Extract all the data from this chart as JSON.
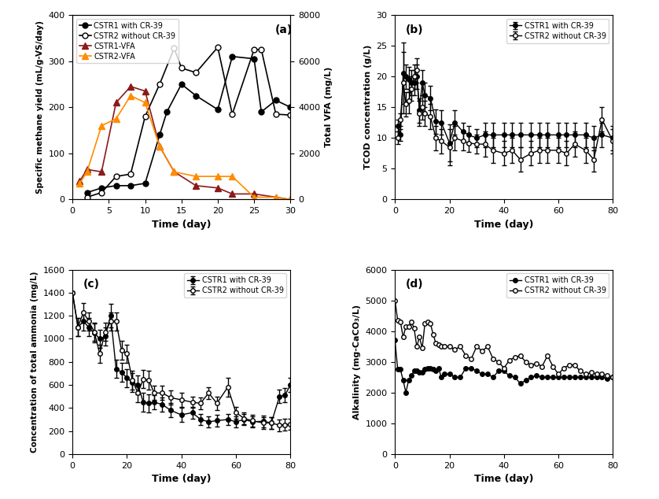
{
  "panel_a": {
    "cstr1_methane_x": [
      2,
      4,
      6,
      8,
      10,
      12,
      13,
      15,
      17,
      20,
      22,
      25,
      26,
      28,
      30
    ],
    "cstr1_methane_y": [
      15,
      25,
      30,
      30,
      35,
      140,
      190,
      250,
      225,
      195,
      310,
      305,
      190,
      215,
      200
    ],
    "cstr2_methane_x": [
      2,
      4,
      6,
      8,
      10,
      12,
      14,
      15,
      17,
      20,
      22,
      25,
      26,
      28,
      30
    ],
    "cstr2_methane_y": [
      5,
      15,
      50,
      55,
      180,
      250,
      328,
      285,
      275,
      330,
      185,
      325,
      325,
      185,
      183
    ],
    "cstr1_vfa_x": [
      1,
      2,
      4,
      6,
      8,
      10,
      12,
      14,
      17,
      20,
      22,
      25,
      28,
      30
    ],
    "cstr1_vfa_y": [
      40,
      65,
      60,
      210,
      245,
      235,
      115,
      60,
      30,
      25,
      12,
      12,
      5,
      0
    ],
    "cstr2_vfa_x": [
      1,
      2,
      4,
      6,
      8,
      10,
      12,
      14,
      17,
      20,
      22,
      25,
      28,
      30
    ],
    "cstr2_vfa_y": [
      35,
      60,
      160,
      175,
      225,
      210,
      115,
      60,
      50,
      50,
      50,
      5,
      5,
      0
    ],
    "ylabel_left": "Specific methane yield (mL/g-VS/day)",
    "ylabel_right": "Total VFA (mg/L)",
    "xlabel": "Time (day)",
    "ylim_left": [
      0,
      400
    ],
    "ylim_right": [
      0,
      8000
    ],
    "xlim": [
      0,
      30
    ],
    "label": "(a)",
    "vfa_scale": 20
  },
  "panel_b": {
    "cstr1_x": [
      1,
      2,
      3,
      4,
      5,
      6,
      7,
      8,
      9,
      10,
      11,
      13,
      15,
      17,
      20,
      22,
      25,
      27,
      30,
      33,
      36,
      40,
      43,
      46,
      50,
      53,
      56,
      60,
      63,
      66,
      70,
      73,
      76,
      80
    ],
    "cstr1_y": [
      12,
      10.5,
      20.5,
      20,
      19.5,
      19,
      19,
      20,
      14.5,
      19,
      17,
      16.5,
      12.7,
      12.5,
      9.2,
      12.5,
      11,
      10.5,
      10,
      10.5,
      10.5,
      10.5,
      10.5,
      10.5,
      10.5,
      10.5,
      10.5,
      10.5,
      10.5,
      10.5,
      10.5,
      10,
      10.5,
      10
    ],
    "cstr1_err": [
      1.0,
      1.0,
      5.0,
      2.0,
      2.0,
      2.0,
      2.0,
      2.0,
      2.0,
      2.0,
      2.0,
      2.0,
      2.0,
      2.0,
      3.0,
      2.0,
      1.5,
      1.5,
      1.5,
      2.0,
      2.0,
      2.0,
      2.0,
      2.0,
      2.0,
      2.0,
      2.0,
      2.0,
      2.0,
      2.0,
      2.0,
      2.0,
      2.0,
      2.0
    ],
    "cstr2_x": [
      1,
      2,
      3,
      4,
      5,
      6,
      7,
      8,
      9,
      10,
      11,
      13,
      15,
      17,
      20,
      22,
      25,
      27,
      30,
      33,
      36,
      40,
      43,
      46,
      50,
      53,
      56,
      60,
      63,
      66,
      70,
      73,
      76,
      80
    ],
    "cstr2_y": [
      10,
      13,
      19,
      15.5,
      16,
      18,
      20,
      21,
      14,
      15,
      14,
      13.5,
      10,
      9.5,
      8.5,
      10,
      9.5,
      9.2,
      9,
      9,
      8,
      7.5,
      8,
      6.5,
      7.5,
      8,
      8,
      8,
      7.5,
      9,
      8,
      6.5,
      13,
      9.5
    ],
    "cstr2_err": [
      1.0,
      1.0,
      5.0,
      2.0,
      2.0,
      2.0,
      2.0,
      2.0,
      2.0,
      2.0,
      2.0,
      2.0,
      2.0,
      2.0,
      3.0,
      2.0,
      1.5,
      1.5,
      1.5,
      2.0,
      2.0,
      2.0,
      2.0,
      2.0,
      2.0,
      2.0,
      2.0,
      2.0,
      2.0,
      2.0,
      2.0,
      2.0,
      2.0,
      2.0
    ],
    "ylabel": "TCOD concentration (g/L)",
    "xlabel": "Time (day)",
    "ylim": [
      0,
      30
    ],
    "xlim": [
      0,
      80
    ],
    "label": "(b)"
  },
  "panel_c": {
    "cstr1_x": [
      0,
      2,
      4,
      6,
      8,
      10,
      12,
      14,
      16,
      18,
      20,
      22,
      24,
      26,
      28,
      30,
      33,
      36,
      40,
      44,
      47,
      50,
      53,
      57,
      60,
      63,
      66,
      70,
      73,
      76,
      78,
      80
    ],
    "cstr1_y": [
      1400,
      1100,
      1150,
      1100,
      1050,
      1000,
      1020,
      1200,
      740,
      710,
      660,
      620,
      600,
      450,
      440,
      450,
      430,
      380,
      340,
      360,
      300,
      280,
      290,
      300,
      280,
      300,
      280,
      285,
      270,
      500,
      510,
      600
    ],
    "cstr1_err": [
      0,
      80,
      80,
      80,
      80,
      80,
      80,
      100,
      80,
      80,
      80,
      80,
      80,
      80,
      80,
      60,
      60,
      60,
      60,
      50,
      50,
      50,
      50,
      50,
      50,
      50,
      50,
      50,
      50,
      60,
      60,
      60
    ],
    "cstr2_x": [
      0,
      2,
      4,
      6,
      8,
      10,
      12,
      14,
      16,
      18,
      20,
      22,
      24,
      26,
      28,
      30,
      33,
      36,
      40,
      44,
      47,
      50,
      53,
      57,
      60,
      63,
      66,
      70,
      73,
      76,
      78,
      80
    ],
    "cstr2_y": [
      1400,
      1100,
      1230,
      1150,
      1060,
      870,
      1060,
      1150,
      1150,
      900,
      870,
      640,
      530,
      650,
      640,
      530,
      530,
      490,
      470,
      450,
      440,
      530,
      440,
      580,
      360,
      310,
      290,
      270,
      270,
      250,
      255,
      260
    ],
    "cstr2_err": [
      0,
      80,
      80,
      80,
      80,
      80,
      80,
      80,
      80,
      80,
      80,
      80,
      80,
      80,
      80,
      60,
      60,
      60,
      60,
      50,
      50,
      50,
      60,
      80,
      50,
      50,
      50,
      50,
      50,
      50,
      50,
      50
    ],
    "ylabel": "Concentration of total ammonia (mg/L)",
    "xlabel": "Time (day)",
    "ylim": [
      0,
      1600
    ],
    "xlim": [
      0,
      80
    ],
    "label": "(c)"
  },
  "panel_d": {
    "cstr1_x": [
      0,
      1,
      2,
      3,
      4,
      5,
      6,
      7,
      8,
      9,
      10,
      11,
      12,
      13,
      14,
      15,
      16,
      17,
      18,
      20,
      22,
      24,
      26,
      28,
      30,
      32,
      34,
      36,
      38,
      40,
      42,
      44,
      46,
      48,
      50,
      52,
      54,
      56,
      58,
      60,
      62,
      64,
      66,
      68,
      70,
      72,
      74,
      76,
      78,
      80
    ],
    "cstr1_y": [
      3700,
      2750,
      2750,
      2400,
      2000,
      2400,
      2550,
      2700,
      2700,
      2650,
      2650,
      2750,
      2800,
      2800,
      2750,
      2700,
      2800,
      2500,
      2600,
      2600,
      2500,
      2500,
      2800,
      2800,
      2700,
      2600,
      2600,
      2500,
      2700,
      2700,
      2550,
      2500,
      2300,
      2400,
      2500,
      2550,
      2500,
      2500,
      2500,
      2500,
      2500,
      2500,
      2500,
      2500,
      2500,
      2500,
      2500,
      2500,
      2450,
      2500
    ],
    "cstr2_x": [
      0,
      1,
      2,
      3,
      4,
      5,
      6,
      7,
      8,
      9,
      10,
      11,
      12,
      13,
      14,
      15,
      16,
      17,
      18,
      20,
      22,
      24,
      26,
      28,
      30,
      32,
      34,
      36,
      38,
      40,
      42,
      44,
      46,
      48,
      50,
      52,
      54,
      56,
      58,
      60,
      62,
      64,
      66,
      68,
      70,
      72,
      74,
      76,
      78,
      80
    ],
    "cstr2_y": [
      5000,
      4350,
      4300,
      3800,
      4150,
      4150,
      4300,
      4100,
      3500,
      3800,
      3450,
      4250,
      4300,
      4250,
      3900,
      3600,
      3550,
      3500,
      3500,
      3500,
      3400,
      3500,
      3200,
      3100,
      3500,
      3350,
      3500,
      3100,
      3000,
      2800,
      3050,
      3150,
      3200,
      3000,
      2900,
      2950,
      2850,
      3200,
      2850,
      2600,
      2800,
      2900,
      2900,
      2700,
      2600,
      2650,
      2600,
      2600,
      2550,
      2500
    ],
    "ylabel": "Alkalinity (mg-CaCO₃/L)",
    "xlabel": "Time (day)",
    "ylim": [
      0,
      6000
    ],
    "xlim": [
      0,
      80
    ],
    "label": "(d)"
  },
  "legend_cstr1": "CSTR1 with CR-39",
  "legend_cstr2": "CSTR2 without CR-39",
  "legend_vfa1": "CSTR1-VFA",
  "legend_vfa2": "CSTR2-VFA"
}
